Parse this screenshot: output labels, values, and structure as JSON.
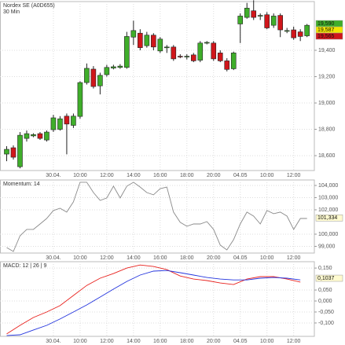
{
  "chart_data": [
    {
      "type": "candlestick",
      "title": "Nordex SE (A0D655)",
      "subtitle": "30 Min",
      "x": [
        0,
        1,
        2,
        3,
        4,
        5,
        6,
        7,
        8,
        9,
        10,
        11,
        12,
        13,
        14,
        15,
        16,
        17,
        18,
        19,
        20,
        21,
        22,
        23,
        24,
        25,
        26,
        27,
        28,
        29,
        30,
        31,
        32,
        33,
        34,
        35,
        36,
        37,
        38,
        39,
        40,
        41,
        42,
        43,
        44,
        45
      ],
      "open": [
        18612,
        18660,
        18516,
        18731,
        18750,
        18767,
        18719,
        18797,
        18800,
        18900,
        18830,
        18898,
        19155,
        19257,
        19130,
        19215,
        19265,
        19270,
        19270,
        19500,
        19530,
        19435,
        19515,
        19395,
        19420,
        19425,
        19355,
        19350,
        19365,
        19325,
        19455,
        19455,
        19380,
        19320,
        19260,
        19600,
        19650,
        19700,
        19660,
        19670,
        19590,
        19665,
        19545,
        19555,
        19540,
        19510
      ],
      "high": [
        18672,
        18678,
        18779,
        18791,
        18770,
        18779,
        18791,
        18910,
        18900,
        18920,
        18920,
        19165,
        19300,
        19280,
        19230,
        19290,
        19290,
        19295,
        19540,
        19625,
        19560,
        19540,
        19530,
        19500,
        19440,
        19440,
        19370,
        19370,
        19380,
        19470,
        19470,
        19470,
        19400,
        19340,
        19390,
        19680,
        19760,
        19780,
        19680,
        19690,
        19680,
        19680,
        19570,
        19580,
        19560,
        19600
      ],
      "low": [
        18558,
        18570,
        18504,
        18707,
        18740,
        18720,
        18707,
        18780,
        18790,
        18610,
        18810,
        18880,
        19140,
        19110,
        19065,
        19200,
        19255,
        19260,
        19260,
        19440,
        19400,
        19420,
        19400,
        19380,
        19380,
        19320,
        19340,
        19330,
        19310,
        19310,
        19445,
        19320,
        19310,
        19240,
        19250,
        19455,
        19640,
        19630,
        19630,
        19560,
        19570,
        19500,
        19530,
        19480,
        19470,
        19500
      ],
      "close": [
        18648,
        18588,
        18755,
        18767,
        18760,
        18731,
        18779,
        18887,
        18880,
        18840,
        18900,
        19155,
        19263,
        19125,
        19210,
        19270,
        19275,
        19280,
        19505,
        19550,
        19420,
        19515,
        19425,
        19485,
        19425,
        19335,
        19350,
        19355,
        19320,
        19455,
        19460,
        19335,
        19320,
        19255,
        19380,
        19660,
        19720,
        19650,
        19665,
        19570,
        19660,
        19555,
        19550,
        19495,
        19505,
        19590
      ],
      "up_color": "#3fae2a",
      "down_color": "#d0161b",
      "xlim": [
        -1,
        46.1
      ],
      "ylim": [
        18487,
        19770
      ],
      "yticks": [
        {
          "value": 18600,
          "label": "18,600"
        },
        {
          "value": 18800,
          "label": "18,800"
        },
        {
          "value": 19000,
          "label": "19,000"
        },
        {
          "value": 19200,
          "label": "19,200"
        },
        {
          "value": 19400,
          "label": "19,400"
        }
      ],
      "xticks": [
        {
          "value": 7,
          "label": "30.04."
        },
        {
          "value": 11,
          "label": "10:00"
        },
        {
          "value": 15,
          "label": "12:00"
        },
        {
          "value": 19,
          "label": "14:00"
        },
        {
          "value": 23,
          "label": "16:00"
        },
        {
          "value": 27,
          "label": "18:00"
        },
        {
          "value": 31,
          "label": "20:00"
        },
        {
          "value": 35,
          "label": "04.05"
        },
        {
          "value": 39,
          "label": "10:00"
        },
        {
          "value": 43,
          "label": "12:00"
        }
      ],
      "price_tags": [
        {
          "value": 19590,
          "label": "19,590",
          "color": "#3fae2a"
        },
        {
          "value": 19587,
          "label": "19,587",
          "color": "#f2e600"
        },
        {
          "value": 19565,
          "label": "19,565",
          "color": "#d0161b"
        }
      ],
      "grid": true
    },
    {
      "type": "line",
      "title": "Momentum: 14",
      "x": [
        0,
        1,
        2,
        3,
        4,
        5,
        6,
        7,
        8,
        9,
        10,
        11,
        12,
        13,
        14,
        15,
        16,
        17,
        18,
        19,
        20,
        21,
        22,
        23,
        24,
        25,
        26,
        27,
        28,
        29,
        30,
        31,
        32,
        33,
        34,
        35,
        36,
        37,
        38,
        39,
        40,
        41,
        42,
        43,
        44,
        45
      ],
      "series": [
        {
          "color": "#8a8a8a",
          "values": [
            98.9,
            98.58,
            99.87,
            100.39,
            100.39,
            100.84,
            101.29,
            101.94,
            102.13,
            101.81,
            102.65,
            104.26,
            104.26,
            103.42,
            102.77,
            102.97,
            103.94,
            102.97,
            103.94,
            104.26,
            103.87,
            103.42,
            103.23,
            103.74,
            103.87,
            101.81,
            100.97,
            100.65,
            100.84,
            100.84,
            101.03,
            100.39,
            99.1,
            98.71,
            99.55,
            100.84,
            101.81,
            101.48,
            100.84,
            101.94,
            101.68,
            101.81,
            101.48,
            100.39,
            101.29,
            101.29
          ]
        }
      ],
      "xlim": [
        -1,
        46.1
      ],
      "ylim": [
        98.45,
        104.45
      ],
      "yticks": [
        {
          "value": 99,
          "label": "99,000"
        },
        {
          "value": 100,
          "label": "100,000"
        },
        {
          "value": 102,
          "label": "102,000"
        },
        {
          "value": 103,
          "label": "103,000"
        },
        {
          "value": 104,
          "label": "104,000"
        }
      ],
      "xticks": [
        {
          "value": 7,
          "label": "30.04."
        },
        {
          "value": 11,
          "label": "10:00"
        },
        {
          "value": 15,
          "label": "12:00"
        },
        {
          "value": 19,
          "label": "14:00"
        },
        {
          "value": 23,
          "label": "16:00"
        },
        {
          "value": 27,
          "label": "18:00"
        },
        {
          "value": 31,
          "label": "20:00"
        },
        {
          "value": 35,
          "label": "04.05"
        },
        {
          "value": 39,
          "label": "10:00"
        },
        {
          "value": 43,
          "label": "12:00"
        }
      ],
      "price_tags": [
        {
          "value": 101.334,
          "label": "101,334",
          "color": "#fffbd0"
        }
      ],
      "grid": true
    },
    {
      "type": "line",
      "title": "MACD: 12 | 26 | 9",
      "x": [
        0,
        2,
        4,
        6,
        8,
        10,
        12,
        14,
        16,
        18,
        20,
        22,
        24,
        26,
        28,
        30,
        32,
        34,
        36,
        38,
        40,
        42,
        44
      ],
      "series": [
        {
          "color": "#e8201c",
          "values": [
            -0.15,
            -0.111,
            -0.075,
            -0.05,
            -0.021,
            0.025,
            0.071,
            0.104,
            0.125,
            0.15,
            0.164,
            0.157,
            0.143,
            0.114,
            0.1,
            0.093,
            0.082,
            0.075,
            0.1,
            0.111,
            0.111,
            0.1,
            0.086
          ]
        },
        {
          "color": "#2233dd",
          "values": [
            -0.157,
            -0.154,
            -0.132,
            -0.111,
            -0.082,
            -0.05,
            -0.018,
            0.018,
            0.054,
            0.089,
            0.118,
            0.136,
            0.139,
            0.129,
            0.118,
            0.107,
            0.1,
            0.096,
            0.096,
            0.104,
            0.107,
            0.104,
            0.096
          ]
        }
      ],
      "xlim": [
        -1,
        46.1
      ],
      "ylim": [
        -0.161,
        0.179
      ],
      "yticks": [
        {
          "value": -0.1,
          "label": "-0,100"
        },
        {
          "value": -0.05,
          "label": "-0,050"
        },
        {
          "value": 0,
          "label": "0,000"
        },
        {
          "value": 0.05,
          "label": "0,050"
        },
        {
          "value": 0.15,
          "label": "0,150"
        }
      ],
      "xticks": [
        {
          "value": 7,
          "label": "30.04."
        },
        {
          "value": 11,
          "label": "10:00"
        },
        {
          "value": 15,
          "label": "12:00"
        },
        {
          "value": 19,
          "label": "14:00"
        },
        {
          "value": 23,
          "label": "16:00"
        },
        {
          "value": 27,
          "label": "18:00"
        },
        {
          "value": 31,
          "label": "20:00"
        },
        {
          "value": 35,
          "label": "04.05"
        },
        {
          "value": 39,
          "label": "10:00"
        },
        {
          "value": 43,
          "label": "12:00"
        }
      ],
      "price_tags": [
        {
          "value": 0.1037,
          "label": "0,1037",
          "color": "#fffbd0"
        }
      ],
      "grid": true
    }
  ]
}
